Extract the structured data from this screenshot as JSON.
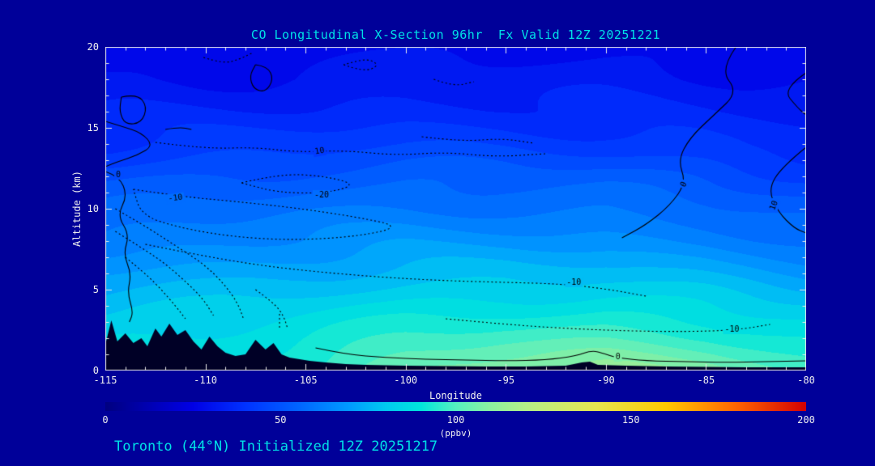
{
  "colors": {
    "background": "#000099",
    "terrain": "#000026",
    "title_text": "#00E0E6",
    "axis_text": "#F0F0F0",
    "frame": "#E8E8E8",
    "contour_line": "#000000"
  },
  "footer": {
    "text": "Toronto (44°N) Initialized 12Z 20251217"
  },
  "chart_data": {
    "type": "heatmap",
    "title": "CO Longitudinal X-Section 96hr  Fx Valid 12Z 20251221",
    "xlabel": "Longitude",
    "ylabel": "Altitude (km)",
    "colorbar_label": "(ppbv)",
    "x_range": [
      -115,
      -80
    ],
    "y_range": [
      0,
      20
    ],
    "colorbar_range": [
      0,
      200
    ],
    "band_step": 5,
    "x_ticks": [
      -115,
      -110,
      -105,
      -100,
      -95,
      -90,
      -85,
      -80
    ],
    "x_tick_labels": [
      "-115",
      "-110",
      "-105",
      "-100",
      "-95",
      "-90",
      "-85",
      "-80"
    ],
    "y_ticks": [
      0,
      5,
      10,
      15,
      20
    ],
    "y_tick_labels": [
      "0",
      "5",
      "10",
      "15",
      "20"
    ],
    "colorbar_ticks": [
      0,
      50,
      100,
      150,
      200
    ],
    "colorbar_tick_labels": [
      "0",
      "50",
      "100",
      "150",
      "200"
    ],
    "colormap": [
      [
        0,
        "#000080"
      ],
      [
        25,
        "#0000E6"
      ],
      [
        40,
        "#0032FF"
      ],
      [
        55,
        "#0064FF"
      ],
      [
        70,
        "#009CFF"
      ],
      [
        80,
        "#00C8F0"
      ],
      [
        90,
        "#00E6DC"
      ],
      [
        100,
        "#55EFC0"
      ],
      [
        110,
        "#8CEFA0"
      ],
      [
        120,
        "#B4EF88"
      ],
      [
        140,
        "#E6E650"
      ],
      [
        160,
        "#FFC800"
      ],
      [
        180,
        "#FF6400"
      ],
      [
        200,
        "#D20000"
      ]
    ],
    "grid": {
      "lon": [
        -115,
        -110,
        -105,
        -100,
        -95,
        -90,
        -85,
        -80
      ],
      "alt": [
        0,
        2,
        4,
        6,
        8,
        10,
        12,
        14,
        16,
        18,
        20
      ],
      "values": [
        [
          88,
          92,
          96,
          105,
          110,
          112,
          108,
          100
        ],
        [
          85,
          87,
          90,
          95,
          98,
          99,
          96,
          90
        ],
        [
          78,
          80,
          83,
          86,
          88,
          88,
          85,
          80
        ],
        [
          70,
          72,
          75,
          77,
          78,
          77,
          74,
          70
        ],
        [
          62,
          64,
          66,
          68,
          68,
          67,
          64,
          60
        ],
        [
          55,
          57,
          59,
          60,
          60,
          59,
          56,
          52
        ],
        [
          48,
          50,
          52,
          53,
          53,
          52,
          49,
          45
        ],
        [
          40,
          42,
          43,
          44,
          44,
          43,
          41,
          38
        ],
        [
          34,
          35,
          36,
          37,
          37,
          36,
          35,
          33
        ],
        [
          30,
          30,
          31,
          32,
          32,
          32,
          31,
          30
        ],
        [
          27,
          27,
          28,
          28,
          29,
          29,
          28,
          27
        ]
      ]
    },
    "terrain": [
      [
        -115,
        1.6
      ],
      [
        -114.7,
        3.1
      ],
      [
        -114.4,
        1.8
      ],
      [
        -114.0,
        2.3
      ],
      [
        -113.6,
        1.7
      ],
      [
        -113.2,
        2.0
      ],
      [
        -112.9,
        1.5
      ],
      [
        -112.5,
        2.6
      ],
      [
        -112.2,
        2.1
      ],
      [
        -111.8,
        2.9
      ],
      [
        -111.4,
        2.2
      ],
      [
        -111.0,
        2.5
      ],
      [
        -110.6,
        1.8
      ],
      [
        -110.2,
        1.3
      ],
      [
        -109.8,
        2.1
      ],
      [
        -109.4,
        1.5
      ],
      [
        -109.0,
        1.1
      ],
      [
        -108.5,
        0.9
      ],
      [
        -108.0,
        1.0
      ],
      [
        -107.5,
        1.9
      ],
      [
        -107.0,
        1.3
      ],
      [
        -106.6,
        1.7
      ],
      [
        -106.2,
        1.0
      ],
      [
        -105.8,
        0.8
      ],
      [
        -105.3,
        0.7
      ],
      [
        -104.8,
        0.6
      ],
      [
        -104.0,
        0.5
      ],
      [
        -103.0,
        0.4
      ],
      [
        -102.0,
        0.35
      ],
      [
        -100.0,
        0.3
      ],
      [
        -98.0,
        0.28
      ],
      [
        -96.0,
        0.25
      ],
      [
        -94.0,
        0.25
      ],
      [
        -92.0,
        0.3
      ],
      [
        -91.2,
        0.5
      ],
      [
        -90.8,
        0.55
      ],
      [
        -90.4,
        0.35
      ],
      [
        -89.0,
        0.3
      ],
      [
        -87.0,
        0.25
      ],
      [
        -85.0,
        0.22
      ],
      [
        -83.0,
        0.2
      ],
      [
        -81.0,
        0.2
      ],
      [
        -80.0,
        0.2
      ]
    ],
    "contours": [
      {
        "style": "solid",
        "label": "",
        "points": [
          [
            -114.2,
            16.9
          ],
          [
            -113.4,
            17.1
          ],
          [
            -112.9,
            16.3
          ],
          [
            -113.2,
            15.3
          ],
          [
            -114.0,
            15.2
          ],
          [
            -114.3,
            16.0
          ],
          [
            -114.2,
            16.9
          ]
        ]
      },
      {
        "style": "solid",
        "label": "",
        "points": [
          [
            -107.5,
            18.9
          ],
          [
            -106.9,
            18.8
          ],
          [
            -106.6,
            18.0
          ],
          [
            -107.0,
            17.2
          ],
          [
            -107.6,
            17.4
          ],
          [
            -107.8,
            18.2
          ],
          [
            -107.5,
            18.9
          ]
        ]
      },
      {
        "style": "solid",
        "label": "",
        "points": [
          [
            -115,
            15.4
          ],
          [
            -114.2,
            15.1
          ],
          [
            -113.2,
            14.7
          ],
          [
            -112.6,
            13.9
          ],
          [
            -113.4,
            13.3
          ],
          [
            -114.4,
            12.9
          ],
          [
            -115,
            12.6
          ]
        ]
      },
      {
        "style": "solid",
        "label": "0",
        "label_pos": [
          -114.35,
          12.1
        ],
        "label_rot": 0,
        "points": [
          [
            -115,
            12.3
          ],
          [
            -114.3,
            12.0
          ],
          [
            -113.9,
            10.8
          ],
          [
            -114.4,
            9.6
          ],
          [
            -113.8,
            8.4
          ],
          [
            -114.1,
            7.2
          ],
          [
            -113.7,
            6.0
          ],
          [
            -113.9,
            4.8
          ],
          [
            -113.6,
            3.6
          ],
          [
            -113.8,
            3.0
          ]
        ]
      },
      {
        "style": "solid",
        "label": "0",
        "label_pos": [
          -86.1,
          11.5
        ],
        "label_rot": -62,
        "points": [
          [
            -83.5,
            20.0
          ],
          [
            -84.3,
            18.6
          ],
          [
            -83.4,
            17.2
          ],
          [
            -84.6,
            15.8
          ],
          [
            -85.8,
            14.4
          ],
          [
            -86.4,
            13.0
          ],
          [
            -86.0,
            11.6
          ],
          [
            -86.8,
            10.2
          ],
          [
            -88.0,
            9.0
          ],
          [
            -89.2,
            8.2
          ]
        ]
      },
      {
        "style": "solid",
        "label": "",
        "points": [
          [
            -80,
            18.4
          ],
          [
            -81.2,
            17.4
          ],
          [
            -80.4,
            16.2
          ],
          [
            -80,
            15.8
          ]
        ]
      },
      {
        "style": "solid",
        "label": "10",
        "label_pos": [
          -81.6,
          10.2
        ],
        "label_rot": -70,
        "points": [
          [
            -80,
            13.8
          ],
          [
            -81.2,
            12.6
          ],
          [
            -81.9,
            11.2
          ],
          [
            -81.4,
            9.8
          ],
          [
            -80.6,
            8.8
          ],
          [
            -80,
            8.5
          ]
        ]
      },
      {
        "style": "solid",
        "label": "0",
        "label_pos": [
          -89.4,
          0.85
        ],
        "label_rot": 0,
        "points": [
          [
            -104.5,
            1.4
          ],
          [
            -103,
            1.0
          ],
          [
            -101,
            0.8
          ],
          [
            -99,
            0.7
          ],
          [
            -97,
            0.65
          ],
          [
            -95,
            0.6
          ],
          [
            -93,
            0.65
          ],
          [
            -91.5,
            0.9
          ],
          [
            -90.7,
            1.25
          ],
          [
            -90.1,
            1.05
          ],
          [
            -89.5,
            0.8
          ],
          [
            -88,
            0.6
          ],
          [
            -86,
            0.55
          ],
          [
            -84,
            0.5
          ],
          [
            -82,
            0.55
          ],
          [
            -80,
            0.6
          ]
        ]
      },
      {
        "style": "solid",
        "label": "",
        "points": [
          [
            -112.0,
            14.9
          ],
          [
            -111.3,
            15.05
          ],
          [
            -110.7,
            14.9
          ]
        ]
      },
      {
        "style": "dotted",
        "label": "10",
        "label_pos": [
          -104.3,
          13.55
        ],
        "label_rot": -10,
        "points": [
          [
            -112.5,
            14.1
          ],
          [
            -110,
            13.7
          ],
          [
            -107.5,
            13.8
          ],
          [
            -105.5,
            13.5
          ],
          [
            -103,
            13.6
          ],
          [
            -100.5,
            13.3
          ],
          [
            -98,
            13.5
          ],
          [
            -95.5,
            13.2
          ],
          [
            -93,
            13.4
          ]
        ]
      },
      {
        "style": "dotted",
        "label": "-20",
        "label_pos": [
          -104.2,
          10.85
        ],
        "label_rot": 0,
        "points": [
          [
            -108.2,
            11.6
          ],
          [
            -106.3,
            12.15
          ],
          [
            -104.2,
            12.05
          ],
          [
            -102.4,
            11.5
          ],
          [
            -104.0,
            10.95
          ],
          [
            -106.4,
            11.0
          ],
          [
            -108.2,
            11.6
          ]
        ]
      },
      {
        "style": "dotted",
        "label": "-10",
        "label_pos": [
          -111.5,
          10.65
        ],
        "label_rot": -8,
        "points": [
          [
            -113.6,
            11.2
          ],
          [
            -111.2,
            10.75
          ],
          [
            -108.5,
            10.45
          ],
          [
            -105.5,
            10.05
          ],
          [
            -102.5,
            9.5
          ],
          [
            -100.2,
            8.9
          ],
          [
            -102.3,
            8.3
          ],
          [
            -105.5,
            8.05
          ],
          [
            -108.6,
            8.25
          ],
          [
            -111.4,
            8.85
          ],
          [
            -113.2,
            9.6
          ],
          [
            -113.6,
            11.2
          ]
        ]
      },
      {
        "style": "dotted",
        "label": "-10",
        "label_pos": [
          -91.6,
          5.45
        ],
        "label_rot": 0,
        "points": [
          [
            -113,
            7.8
          ],
          [
            -110,
            7.05
          ],
          [
            -107,
            6.45
          ],
          [
            -104,
            6.05
          ],
          [
            -101,
            5.75
          ],
          [
            -98,
            5.55
          ],
          [
            -95,
            5.45
          ],
          [
            -92.2,
            5.35
          ],
          [
            -90,
            5.05
          ],
          [
            -88,
            4.6
          ]
        ]
      },
      {
        "style": "dotted",
        "label": "-10",
        "label_pos": [
          -83.7,
          2.55
        ],
        "label_rot": 0,
        "points": [
          [
            -98,
            3.2
          ],
          [
            -95,
            2.85
          ],
          [
            -92,
            2.6
          ],
          [
            -89,
            2.45
          ],
          [
            -86,
            2.4
          ],
          [
            -83.5,
            2.5
          ],
          [
            -81.8,
            2.85
          ]
        ]
      },
      {
        "style": "dotted",
        "label": "",
        "points": [
          [
            -114.5,
            10.0
          ],
          [
            -113.1,
            9.0
          ],
          [
            -111.6,
            7.8
          ],
          [
            -110.1,
            6.6
          ],
          [
            -109.1,
            5.4
          ],
          [
            -108.4,
            4.2
          ],
          [
            -108.1,
            3.2
          ]
        ]
      },
      {
        "style": "dotted",
        "label": "",
        "points": [
          [
            -114.5,
            8.6
          ],
          [
            -113.2,
            7.6
          ],
          [
            -112.0,
            6.6
          ],
          [
            -110.9,
            5.4
          ],
          [
            -110.1,
            4.4
          ],
          [
            -109.6,
            3.4
          ]
        ]
      },
      {
        "style": "dotted",
        "label": "",
        "points": [
          [
            -114.0,
            7.0
          ],
          [
            -113.0,
            6.0
          ],
          [
            -112.2,
            5.0
          ],
          [
            -111.5,
            4.0
          ],
          [
            -111.0,
            3.2
          ]
        ]
      },
      {
        "style": "dotted",
        "label": "",
        "points": [
          [
            -107.5,
            5.0
          ],
          [
            -106.6,
            4.2
          ],
          [
            -106.1,
            3.4
          ],
          [
            -105.9,
            2.6
          ]
        ]
      },
      {
        "style": "dotted",
        "label": "",
        "points": [
          [
            -110.1,
            19.35
          ],
          [
            -109.1,
            18.95
          ],
          [
            -108.3,
            19.25
          ],
          [
            -107.7,
            19.6
          ]
        ]
      },
      {
        "style": "dotted",
        "label": "",
        "points": [
          [
            -103.1,
            18.9
          ],
          [
            -102.1,
            18.45
          ],
          [
            -101.3,
            18.85
          ],
          [
            -101.9,
            19.3
          ],
          [
            -103.1,
            18.9
          ]
        ]
      },
      {
        "style": "dotted",
        "label": "",
        "points": [
          [
            -99.2,
            14.45
          ],
          [
            -97.2,
            14.15
          ],
          [
            -95.2,
            14.35
          ],
          [
            -93.6,
            14.05
          ]
        ]
      },
      {
        "style": "dotted",
        "label": "",
        "points": [
          [
            -98.6,
            18.0
          ],
          [
            -97.6,
            17.55
          ],
          [
            -96.6,
            17.85
          ]
        ]
      },
      {
        "style": "dotted",
        "label": "",
        "points": [
          [
            -106.3,
            3.5
          ],
          [
            -106.3,
            2.6
          ]
        ]
      }
    ]
  }
}
